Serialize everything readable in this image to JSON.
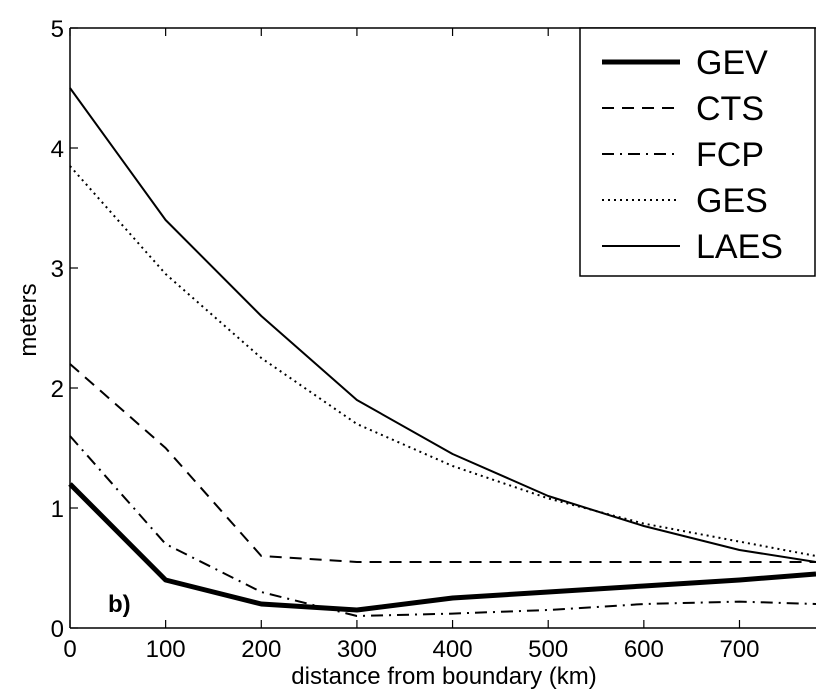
{
  "chart_data": {
    "type": "line",
    "panel_label": "b)",
    "xlabel": "distance from boundary (km)",
    "ylabel": "meters",
    "xlim": [
      0,
      780
    ],
    "ylim": [
      0,
      5
    ],
    "xticks": [
      0,
      100,
      200,
      300,
      400,
      500,
      600,
      700
    ],
    "yticks": [
      0,
      1,
      2,
      3,
      4,
      5
    ],
    "grid": false,
    "legend_position": "top-right",
    "series": [
      {
        "name": "GEV",
        "style": "thick-solid",
        "x": [
          0,
          100,
          200,
          300,
          400,
          500,
          600,
          700,
          780
        ],
        "y": [
          1.2,
          0.4,
          0.2,
          0.15,
          0.25,
          0.3,
          0.35,
          0.4,
          0.45
        ]
      },
      {
        "name": "CTS",
        "style": "dashed",
        "x": [
          0,
          100,
          200,
          300,
          400,
          500,
          600,
          700,
          780
        ],
        "y": [
          2.2,
          1.5,
          0.6,
          0.55,
          0.55,
          0.55,
          0.55,
          0.55,
          0.55
        ]
      },
      {
        "name": "FCP",
        "style": "dashdot",
        "x": [
          0,
          100,
          200,
          300,
          400,
          500,
          600,
          700,
          780
        ],
        "y": [
          1.6,
          0.7,
          0.3,
          0.1,
          0.12,
          0.15,
          0.2,
          0.22,
          0.2
        ]
      },
      {
        "name": "GES",
        "style": "dotted",
        "x": [
          0,
          100,
          200,
          300,
          400,
          500,
          600,
          700,
          780
        ],
        "y": [
          3.85,
          2.95,
          2.25,
          1.7,
          1.35,
          1.08,
          0.87,
          0.72,
          0.6
        ]
      },
      {
        "name": "LAES",
        "style": "solid",
        "x": [
          0,
          100,
          200,
          300,
          400,
          500,
          600,
          700,
          780
        ],
        "y": [
          4.5,
          3.4,
          2.6,
          1.9,
          1.45,
          1.1,
          0.85,
          0.65,
          0.55
        ]
      }
    ]
  }
}
